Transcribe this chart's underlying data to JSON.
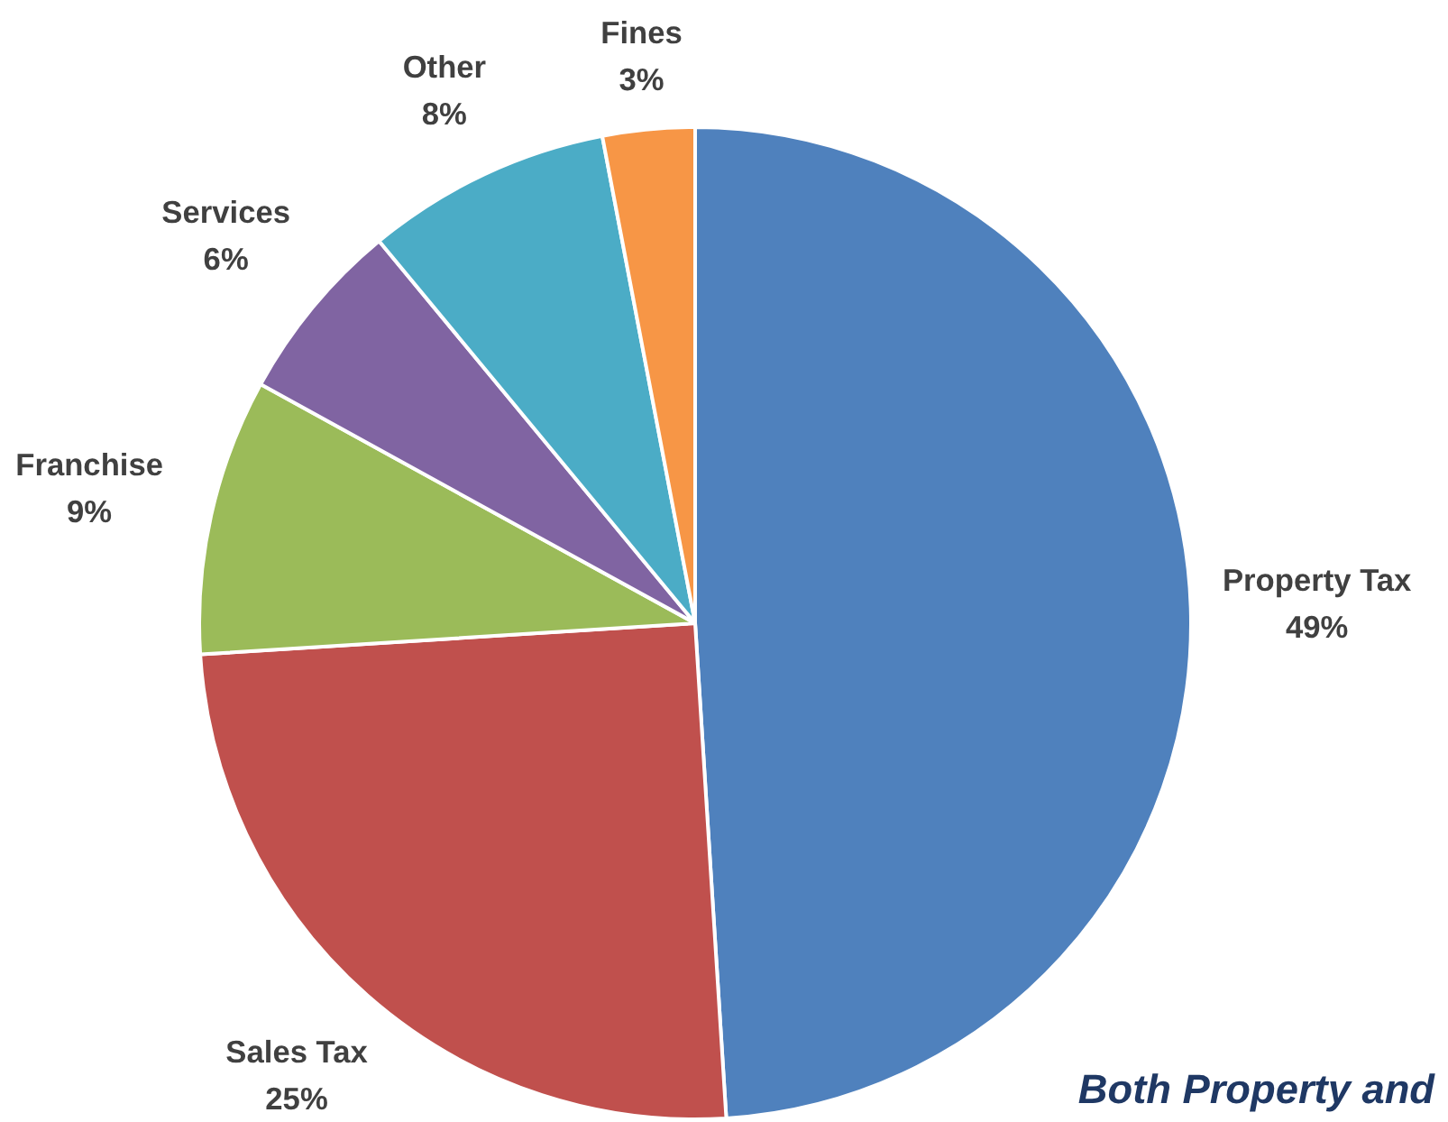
{
  "chart_data": {
    "type": "pie",
    "categories": [
      "Property Tax",
      "Sales Tax",
      "Franchise",
      "Services",
      "Other",
      "Fines"
    ],
    "values": [
      49,
      25,
      9,
      6,
      8,
      3
    ],
    "value_labels": [
      "49%",
      "25%",
      "9%",
      "6%",
      "8%",
      "3%"
    ],
    "colors": [
      "#4f81bd",
      "#c0504d",
      "#9bbb59",
      "#8064a2",
      "#4bacc6",
      "#f79646"
    ],
    "annotations": [
      "Both Property and"
    ]
  }
}
